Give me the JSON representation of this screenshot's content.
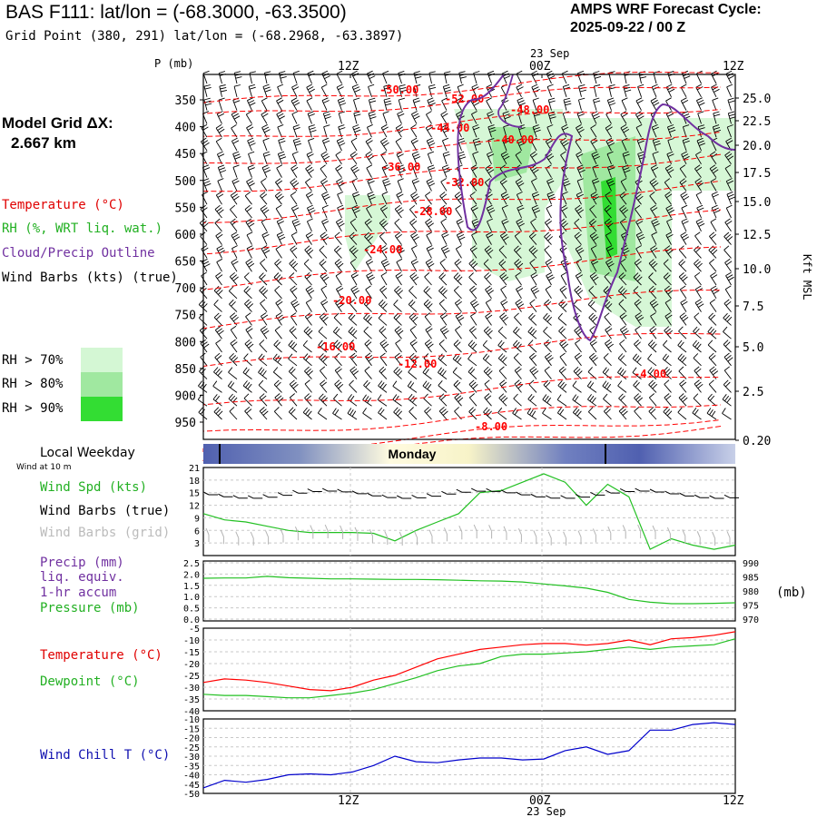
{
  "header": {
    "title": "BAS F111:  lat/lon = (-68.3000, -63.3500)",
    "subtitle": "Grid Point (380, 291) lat/lon = (-68.2968, -63.3897)",
    "cycle_label": "AMPS WRF Forecast Cycle:",
    "cycle_value": "2025-09-22 / 00  Z",
    "grid_label": "Model Grid ΔX:",
    "grid_value": "2.667 km"
  },
  "legend": {
    "temperature": "Temperature (°C)",
    "rh": "RH (%, WRT liq. wat.)",
    "cloud": "Cloud/Precip Outline",
    "wind": "Wind Barbs (kts) (true)",
    "rh70": "RH > 70%",
    "rh80": "RH > 80%",
    "rh90": "RH > 90%",
    "colors": {
      "temperature": "#ff0000",
      "rh": "#22c022",
      "cloud": "#7030a0",
      "rh70": "#d4f7d4",
      "rh80": "#a0e8a0",
      "rh90": "#33dd33"
    }
  },
  "time_axis": {
    "top_labels": [
      "12Z",
      "00Z",
      "12Z"
    ],
    "bottom_labels": [
      "12Z",
      "00Z",
      "12Z"
    ],
    "date_label": "23 Sep"
  },
  "local_weekday": {
    "label": "Local Weekday",
    "sublabel": "Wind at 10 m",
    "day": "Monday"
  },
  "panel_labels": {
    "p_axis": "P (mb)",
    "kft": "Kft MSL",
    "wind_spd": "Wind Spd (kts)",
    "wind_barbs_true": "Wind Barbs (true)",
    "wind_barbs_grid": "Wind Barbs (grid)",
    "precip": "Precip (mm)",
    "liq": "liq. equiv.",
    "accum": "1-hr accum",
    "pressure": "Pressure (mb)",
    "pressure_unit": "(mb)",
    "temperature": "Temperature (°C)",
    "dewpoint": "Dewpoint (°C)",
    "windchill": "Wind Chill T (°C)"
  },
  "chart_data": [
    {
      "type": "heatmap",
      "name_note": "cross-section",
      "y_left_label": "P (mb)",
      "y_left_ticks": [
        350,
        400,
        450,
        500,
        550,
        600,
        650,
        700,
        750,
        800,
        850,
        900,
        950
      ],
      "y_right_label": "Kft MSL",
      "y_right_ticks": [
        "25.0",
        "22.5",
        "20.0",
        "17.5",
        "15.0",
        "12.5",
        "10.0",
        "7.5",
        "5.0",
        "2.5",
        "0.20"
      ],
      "x_ticks": [
        "12Z",
        "00Z",
        "12Z"
      ],
      "temperature_labels": [
        "-50.00",
        "-52.00",
        "-48.00",
        "-44.00",
        "-40.00",
        "-36.00",
        "-32.00",
        "-28.00",
        "-24.00",
        "-20.00",
        "-16.00",
        "-12.00",
        "-4.00",
        "-8.00"
      ]
    },
    {
      "type": "line",
      "name_note": "wind",
      "y_ticks": [
        21,
        18,
        15,
        12,
        9,
        6,
        3
      ],
      "ylim": [
        0,
        21
      ],
      "series": [
        {
          "color": "#22c022",
          "values": [
            10,
            8.5,
            8,
            7,
            6,
            5.5,
            5.5,
            5.5,
            5.3,
            3.5,
            6,
            8,
            10,
            15,
            15.5,
            17.5,
            19.5,
            17.5,
            12,
            17,
            14,
            1.5,
            4,
            2.5,
            1.5,
            2.5
          ]
        }
      ]
    },
    {
      "type": "line",
      "name_note": "precip-pressure",
      "y_left_ticks": [
        "2.5",
        "2.0",
        "1.5",
        "1.0",
        "0.5",
        "0.0"
      ],
      "y_right_ticks": [
        990,
        985,
        980,
        975,
        970
      ],
      "ylim_right": [
        970,
        990
      ],
      "series": [
        {
          "color": "#22c022",
          "values": [
            984.5,
            984.6,
            984.6,
            985.2,
            984.7,
            984.5,
            984.3,
            984.3,
            984.2,
            984.1,
            984.1,
            984.0,
            983.8,
            983.6,
            983.5,
            983.2,
            982.5,
            981.8,
            981.0,
            979.5,
            977.0,
            976.0,
            975.5,
            975.5,
            975.6,
            975.8
          ]
        }
      ]
    },
    {
      "type": "line",
      "name_note": "temperature-dewpoint",
      "y_ticks": [
        -5,
        -10,
        -15,
        -20,
        -25,
        -30,
        -35,
        -40
      ],
      "ylim": [
        -40,
        -5
      ],
      "series": [
        {
          "color": "#ff0000",
          "values": [
            -28,
            -26.5,
            -27,
            -28,
            -29.5,
            -31,
            -31.5,
            -30,
            -27,
            -25,
            -21.5,
            -18,
            -16,
            -14,
            -13,
            -12,
            -11.5,
            -11.5,
            -12.2,
            -11.5,
            -10,
            -12,
            -9.5,
            -9,
            -8,
            -6.5
          ]
        },
        {
          "color": "#22c022",
          "values": [
            -33,
            -33.5,
            -33.5,
            -34,
            -34.5,
            -34.5,
            -33.5,
            -32.5,
            -31,
            -28.5,
            -26,
            -23,
            -21,
            -20,
            -17,
            -16,
            -16,
            -15.5,
            -15,
            -14,
            -13,
            -14,
            -13,
            -12.5,
            -12,
            -9.5
          ]
        }
      ]
    },
    {
      "type": "line",
      "name_note": "wind-chill",
      "y_ticks": [
        -10,
        -15,
        -20,
        -25,
        -30,
        -35,
        -40,
        -45,
        -50
      ],
      "ylim": [
        -50,
        -10
      ],
      "series": [
        {
          "color": "#0000cc",
          "values": [
            -47,
            -43,
            -44,
            -42.5,
            -40,
            -39.5,
            -40,
            -38.5,
            -35,
            -30,
            -33,
            -33.5,
            -32,
            -31,
            -31,
            -32,
            -31.5,
            -27,
            -25,
            -29,
            -27,
            -16,
            -16,
            -13,
            -12,
            -13
          ]
        }
      ]
    }
  ]
}
